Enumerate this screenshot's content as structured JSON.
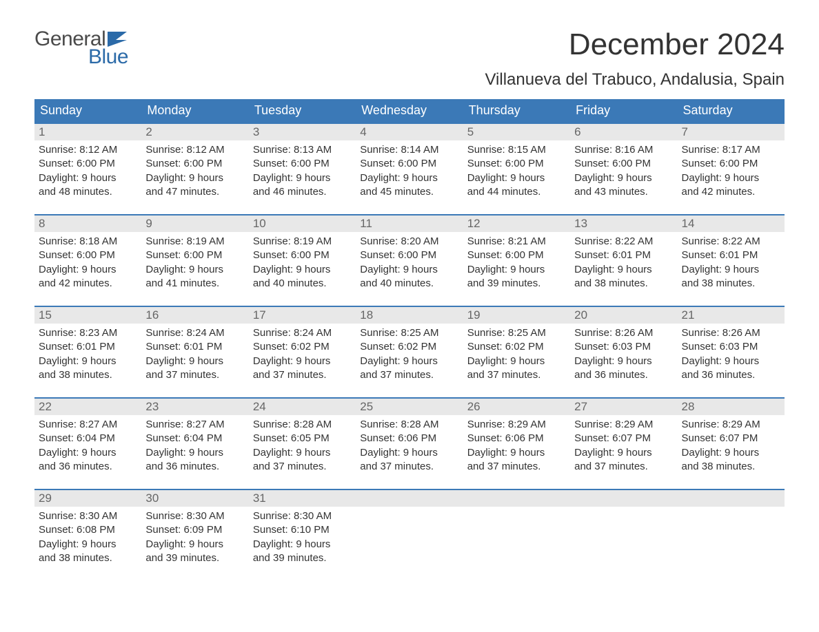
{
  "logo": {
    "text1": "General",
    "text2": "Blue",
    "flag_color": "#2b6aa8",
    "text1_color": "#4a4a4a"
  },
  "title": "December 2024",
  "location": "Villanueva del Trabuco, Andalusia, Spain",
  "colors": {
    "header_bg": "#3b79b7",
    "header_text": "#ffffff",
    "daynum_bg": "#e8e8e8",
    "daynum_text": "#666666",
    "body_text": "#333333",
    "page_bg": "#ffffff",
    "week_border": "#3b79b7"
  },
  "typography": {
    "title_fontsize": 44,
    "location_fontsize": 24,
    "header_fontsize": 18,
    "daynum_fontsize": 17,
    "body_fontsize": 15
  },
  "weekdays": [
    "Sunday",
    "Monday",
    "Tuesday",
    "Wednesday",
    "Thursday",
    "Friday",
    "Saturday"
  ],
  "weeks": [
    [
      {
        "day": "1",
        "sunrise": "Sunrise: 8:12 AM",
        "sunset": "Sunset: 6:00 PM",
        "dl1": "Daylight: 9 hours",
        "dl2": "and 48 minutes."
      },
      {
        "day": "2",
        "sunrise": "Sunrise: 8:12 AM",
        "sunset": "Sunset: 6:00 PM",
        "dl1": "Daylight: 9 hours",
        "dl2": "and 47 minutes."
      },
      {
        "day": "3",
        "sunrise": "Sunrise: 8:13 AM",
        "sunset": "Sunset: 6:00 PM",
        "dl1": "Daylight: 9 hours",
        "dl2": "and 46 minutes."
      },
      {
        "day": "4",
        "sunrise": "Sunrise: 8:14 AM",
        "sunset": "Sunset: 6:00 PM",
        "dl1": "Daylight: 9 hours",
        "dl2": "and 45 minutes."
      },
      {
        "day": "5",
        "sunrise": "Sunrise: 8:15 AM",
        "sunset": "Sunset: 6:00 PM",
        "dl1": "Daylight: 9 hours",
        "dl2": "and 44 minutes."
      },
      {
        "day": "6",
        "sunrise": "Sunrise: 8:16 AM",
        "sunset": "Sunset: 6:00 PM",
        "dl1": "Daylight: 9 hours",
        "dl2": "and 43 minutes."
      },
      {
        "day": "7",
        "sunrise": "Sunrise: 8:17 AM",
        "sunset": "Sunset: 6:00 PM",
        "dl1": "Daylight: 9 hours",
        "dl2": "and 42 minutes."
      }
    ],
    [
      {
        "day": "8",
        "sunrise": "Sunrise: 8:18 AM",
        "sunset": "Sunset: 6:00 PM",
        "dl1": "Daylight: 9 hours",
        "dl2": "and 42 minutes."
      },
      {
        "day": "9",
        "sunrise": "Sunrise: 8:19 AM",
        "sunset": "Sunset: 6:00 PM",
        "dl1": "Daylight: 9 hours",
        "dl2": "and 41 minutes."
      },
      {
        "day": "10",
        "sunrise": "Sunrise: 8:19 AM",
        "sunset": "Sunset: 6:00 PM",
        "dl1": "Daylight: 9 hours",
        "dl2": "and 40 minutes."
      },
      {
        "day": "11",
        "sunrise": "Sunrise: 8:20 AM",
        "sunset": "Sunset: 6:00 PM",
        "dl1": "Daylight: 9 hours",
        "dl2": "and 40 minutes."
      },
      {
        "day": "12",
        "sunrise": "Sunrise: 8:21 AM",
        "sunset": "Sunset: 6:00 PM",
        "dl1": "Daylight: 9 hours",
        "dl2": "and 39 minutes."
      },
      {
        "day": "13",
        "sunrise": "Sunrise: 8:22 AM",
        "sunset": "Sunset: 6:01 PM",
        "dl1": "Daylight: 9 hours",
        "dl2": "and 38 minutes."
      },
      {
        "day": "14",
        "sunrise": "Sunrise: 8:22 AM",
        "sunset": "Sunset: 6:01 PM",
        "dl1": "Daylight: 9 hours",
        "dl2": "and 38 minutes."
      }
    ],
    [
      {
        "day": "15",
        "sunrise": "Sunrise: 8:23 AM",
        "sunset": "Sunset: 6:01 PM",
        "dl1": "Daylight: 9 hours",
        "dl2": "and 38 minutes."
      },
      {
        "day": "16",
        "sunrise": "Sunrise: 8:24 AM",
        "sunset": "Sunset: 6:01 PM",
        "dl1": "Daylight: 9 hours",
        "dl2": "and 37 minutes."
      },
      {
        "day": "17",
        "sunrise": "Sunrise: 8:24 AM",
        "sunset": "Sunset: 6:02 PM",
        "dl1": "Daylight: 9 hours",
        "dl2": "and 37 minutes."
      },
      {
        "day": "18",
        "sunrise": "Sunrise: 8:25 AM",
        "sunset": "Sunset: 6:02 PM",
        "dl1": "Daylight: 9 hours",
        "dl2": "and 37 minutes."
      },
      {
        "day": "19",
        "sunrise": "Sunrise: 8:25 AM",
        "sunset": "Sunset: 6:02 PM",
        "dl1": "Daylight: 9 hours",
        "dl2": "and 37 minutes."
      },
      {
        "day": "20",
        "sunrise": "Sunrise: 8:26 AM",
        "sunset": "Sunset: 6:03 PM",
        "dl1": "Daylight: 9 hours",
        "dl2": "and 36 minutes."
      },
      {
        "day": "21",
        "sunrise": "Sunrise: 8:26 AM",
        "sunset": "Sunset: 6:03 PM",
        "dl1": "Daylight: 9 hours",
        "dl2": "and 36 minutes."
      }
    ],
    [
      {
        "day": "22",
        "sunrise": "Sunrise: 8:27 AM",
        "sunset": "Sunset: 6:04 PM",
        "dl1": "Daylight: 9 hours",
        "dl2": "and 36 minutes."
      },
      {
        "day": "23",
        "sunrise": "Sunrise: 8:27 AM",
        "sunset": "Sunset: 6:04 PM",
        "dl1": "Daylight: 9 hours",
        "dl2": "and 36 minutes."
      },
      {
        "day": "24",
        "sunrise": "Sunrise: 8:28 AM",
        "sunset": "Sunset: 6:05 PM",
        "dl1": "Daylight: 9 hours",
        "dl2": "and 37 minutes."
      },
      {
        "day": "25",
        "sunrise": "Sunrise: 8:28 AM",
        "sunset": "Sunset: 6:06 PM",
        "dl1": "Daylight: 9 hours",
        "dl2": "and 37 minutes."
      },
      {
        "day": "26",
        "sunrise": "Sunrise: 8:29 AM",
        "sunset": "Sunset: 6:06 PM",
        "dl1": "Daylight: 9 hours",
        "dl2": "and 37 minutes."
      },
      {
        "day": "27",
        "sunrise": "Sunrise: 8:29 AM",
        "sunset": "Sunset: 6:07 PM",
        "dl1": "Daylight: 9 hours",
        "dl2": "and 37 minutes."
      },
      {
        "day": "28",
        "sunrise": "Sunrise: 8:29 AM",
        "sunset": "Sunset: 6:07 PM",
        "dl1": "Daylight: 9 hours",
        "dl2": "and 38 minutes."
      }
    ],
    [
      {
        "day": "29",
        "sunrise": "Sunrise: 8:30 AM",
        "sunset": "Sunset: 6:08 PM",
        "dl1": "Daylight: 9 hours",
        "dl2": "and 38 minutes."
      },
      {
        "day": "30",
        "sunrise": "Sunrise: 8:30 AM",
        "sunset": "Sunset: 6:09 PM",
        "dl1": "Daylight: 9 hours",
        "dl2": "and 39 minutes."
      },
      {
        "day": "31",
        "sunrise": "Sunrise: 8:30 AM",
        "sunset": "Sunset: 6:10 PM",
        "dl1": "Daylight: 9 hours",
        "dl2": "and 39 minutes."
      },
      {
        "empty": true
      },
      {
        "empty": true
      },
      {
        "empty": true
      },
      {
        "empty": true
      }
    ]
  ]
}
